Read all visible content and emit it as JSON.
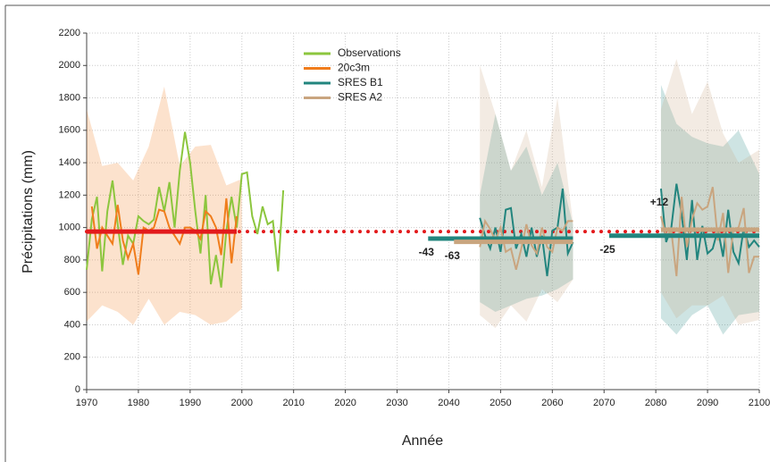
{
  "chart_data": {
    "type": "line",
    "x_label": "Année",
    "y_label": "Précipitations (mm)",
    "xlim": [
      1970,
      2100
    ],
    "xticks": [
      1970,
      1980,
      1990,
      2000,
      2010,
      2020,
      2030,
      2040,
      2050,
      2060,
      2070,
      2080,
      2090,
      2100
    ],
    "ylim": [
      0,
      2200
    ],
    "yticks": [
      0,
      200,
      400,
      600,
      800,
      1000,
      1200,
      1400,
      1600,
      1800,
      2000,
      2200
    ],
    "grid": true,
    "series": [
      {
        "name": "Observations",
        "color": "#8cc63e",
        "x": [
          1970,
          1971,
          1972,
          1973,
          1974,
          1975,
          1976,
          1977,
          1978,
          1979,
          1980,
          1981,
          1982,
          1983,
          1984,
          1985,
          1986,
          1987,
          1988,
          1989,
          1990,
          1991,
          1992,
          1993,
          1994,
          1995,
          1996,
          1997,
          1998,
          1999,
          2000,
          2001,
          2002,
          2003,
          2004,
          2005,
          2006,
          2007,
          2008
        ],
        "values": [
          740,
          1050,
          1190,
          730,
          1100,
          1290,
          1020,
          770,
          950,
          900,
          1070,
          1040,
          1020,
          1050,
          1250,
          1100,
          1280,
          1000,
          1350,
          1590,
          1400,
          1100,
          840,
          1200,
          650,
          830,
          630,
          980,
          1190,
          1000,
          1330,
          1340,
          1070,
          960,
          1130,
          1020,
          1040,
          730,
          1230
        ]
      },
      {
        "name": "20c3m",
        "color": "#f07d1c",
        "x": [
          1971,
          1972,
          1973,
          1974,
          1975,
          1976,
          1977,
          1978,
          1979,
          1980,
          1981,
          1982,
          1983,
          1984,
          1985,
          1986,
          1987,
          1988,
          1989,
          1990,
          1991,
          1992,
          1993,
          1994,
          1995,
          1996,
          1997,
          1998,
          1999
        ],
        "values": [
          1130,
          870,
          1000,
          950,
          900,
          1140,
          920,
          810,
          900,
          710,
          1000,
          980,
          1000,
          1110,
          1100,
          1000,
          950,
          900,
          1000,
          1000,
          980,
          930,
          1100,
          1070,
          1000,
          830,
          1180,
          780,
          1070
        ],
        "bands": [
          {
            "x": [
              1970,
              1973,
              1976,
              1979,
              1982,
              1985,
              1988,
              1991,
              1994,
              1997,
              2000
            ],
            "upper": [
              1730,
              1380,
              1400,
              1290,
              1500,
              1870,
              1380,
              1500,
              1510,
              1260,
              1300
            ],
            "lower": [
              420,
              520,
              480,
              400,
              560,
              400,
              480,
              460,
              400,
              420,
              500
            ]
          }
        ]
      },
      {
        "name": "SRES B1",
        "color": "#22857e",
        "x": [
          2046,
          2047,
          2048,
          2049,
          2050,
          2051,
          2052,
          2053,
          2054,
          2055,
          2056,
          2057,
          2058,
          2059,
          2060,
          2061,
          2062,
          2063,
          2064,
          2065,
          2066,
          2067,
          2068,
          2069,
          2070,
          2071,
          2072,
          2073,
          2074,
          2075,
          2076,
          2077,
          2078,
          2079,
          2080,
          2081,
          2082,
          2083,
          2084,
          2085,
          2086,
          2087,
          2088,
          2089,
          2090,
          2091,
          2092,
          2093,
          2094,
          2095,
          2096,
          2097,
          2098,
          2099,
          2100
        ],
        "values": [
          1060,
          950,
          870,
          1000,
          850,
          1110,
          1120,
          870,
          960,
          820,
          1000,
          820,
          950,
          700,
          980,
          1000,
          1240,
          840,
          910,
          null,
          null,
          null,
          null,
          null,
          null,
          null,
          null,
          null,
          null,
          null,
          null,
          null,
          null,
          null,
          null,
          1240,
          910,
          1000,
          1270,
          1080,
          800,
          1170,
          800,
          1010,
          840,
          870,
          990,
          820,
          1110,
          850,
          780,
          1000,
          880,
          920,
          880
        ],
        "bands": [
          {
            "x": [
              2046,
              2049,
              2052,
              2055,
              2058,
              2061,
              2064
            ],
            "upper": [
              1200,
              1700,
              1350,
              1500,
              1200,
              1400,
              1020
            ],
            "lower": [
              540,
              480,
              520,
              560,
              580,
              620,
              680
            ]
          },
          {
            "x": [
              2081,
              2084,
              2087,
              2090,
              2093,
              2096,
              2100
            ],
            "upper": [
              1880,
              1640,
              1560,
              1520,
              1500,
              1600,
              1330
            ],
            "lower": [
              440,
              340,
              460,
              520,
              340,
              460,
              480
            ]
          }
        ]
      },
      {
        "name": "SRES A2",
        "color": "#c9a57f",
        "x": [
          2046,
          2047,
          2048,
          2049,
          2050,
          2051,
          2052,
          2053,
          2054,
          2055,
          2056,
          2057,
          2058,
          2059,
          2060,
          2061,
          2062,
          2063,
          2064,
          2065,
          2066,
          2067,
          2068,
          2069,
          2070,
          2071,
          2072,
          2073,
          2074,
          2075,
          2076,
          2077,
          2078,
          2079,
          2080,
          2081,
          2082,
          2083,
          2084,
          2085,
          2086,
          2087,
          2088,
          2089,
          2090,
          2091,
          2092,
          2093,
          2094,
          2095,
          2096,
          2097,
          2098,
          2099,
          2100
        ],
        "values": [
          880,
          1040,
          990,
          920,
          1000,
          850,
          870,
          740,
          870,
          1020,
          890,
          840,
          1000,
          880,
          850,
          1000,
          980,
          1040,
          1040,
          null,
          null,
          null,
          null,
          null,
          null,
          null,
          null,
          null,
          null,
          null,
          null,
          null,
          null,
          null,
          null,
          1070,
          950,
          980,
          700,
          1190,
          880,
          1050,
          1150,
          1110,
          1130,
          1250,
          920,
          1090,
          720,
          990,
          1000,
          1120,
          720,
          820,
          820
        ],
        "bands": [
          {
            "x": [
              2046,
              2049,
              2052,
              2055,
              2058,
              2061,
              2064
            ],
            "upper": [
              2000,
              1700,
              1350,
              1600,
              1250,
              1800,
              1030
            ],
            "lower": [
              460,
              380,
              520,
              420,
              620,
              540,
              680
            ]
          },
          {
            "x": [
              2081,
              2084,
              2087,
              2090,
              2093,
              2096,
              2100
            ],
            "upper": [
              1730,
              2040,
              1700,
              1900,
              1580,
              1400,
              1480
            ],
            "lower": [
              600,
              440,
              520,
              520,
              580,
              400,
              430
            ]
          }
        ]
      }
    ],
    "reference_line": {
      "value": 975,
      "color": "#e31a1c"
    },
    "mean_lines": [
      {
        "color": "#e31a1c",
        "x": [
          1970,
          1999
        ],
        "value": 975
      },
      {
        "color": "#22857e",
        "x": [
          2036,
          2064
        ],
        "value": 932,
        "label": "-43"
      },
      {
        "color": "#c9a57f",
        "x": [
          2041,
          2064
        ],
        "value": 912,
        "label": "-63"
      },
      {
        "color": "#22857e",
        "x": [
          2071,
          2100
        ],
        "value": 950,
        "label": "-25"
      },
      {
        "color": "#c9a57f",
        "x": [
          2081,
          2100
        ],
        "value": 987,
        "label": "+12"
      }
    ]
  }
}
